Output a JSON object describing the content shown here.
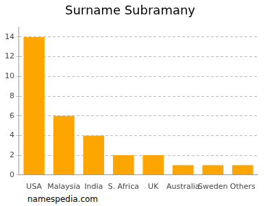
{
  "chart_data": {
    "type": "bar",
    "title": "Surname Subramany",
    "categories": [
      "USA",
      "Malaysia",
      "India",
      "S. Africa",
      "UK",
      "Australia",
      "Sweden",
      "Others"
    ],
    "values": [
      14,
      6,
      4,
      2,
      2,
      1,
      1,
      1
    ],
    "color": "#ffa500",
    "ylim": [
      0,
      15
    ],
    "yticks": [
      0,
      2,
      4,
      6,
      8,
      10,
      12,
      14
    ],
    "grid": true,
    "annotations": [
      "namespedia.com"
    ]
  }
}
